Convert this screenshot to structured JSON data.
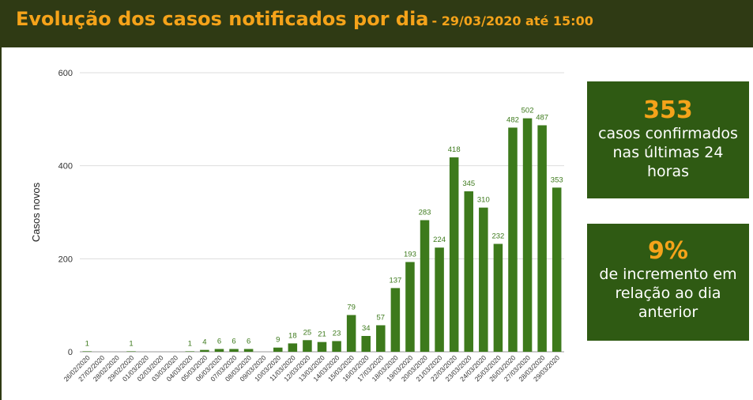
{
  "header": {
    "title": "Evolução dos casos notificados por dia",
    "subtitle": "- 29/03/2020 até 15:00"
  },
  "cards": {
    "confirmed": {
      "value": "353",
      "text": "casos confirmados nas últimas 24 horas"
    },
    "increase": {
      "value": "9%",
      "text": "de incremento em relação ao dia anterior"
    }
  },
  "colors": {
    "bar": "#3d7a1c",
    "label": "#3d7a1c",
    "header_bg": "#2f3a14",
    "accent": "#f5a31a",
    "card_bg": "#2f5a13"
  },
  "chart_data": {
    "type": "bar",
    "ylabel": "Casos novos",
    "ylim": [
      0,
      600
    ],
    "yticks": [
      0,
      200,
      400,
      600
    ],
    "grid": true,
    "categories": [
      "26/02/2020",
      "27/02/2020",
      "28/02/2020",
      "29/02/2020",
      "01/03/2020",
      "02/03/2020",
      "03/03/2020",
      "04/03/2020",
      "05/03/2020",
      "06/03/2020",
      "07/03/2020",
      "08/03/2020",
      "09/03/2020",
      "10/03/2020",
      "11/03/2020",
      "12/03/2020",
      "13/03/2020",
      "14/03/2020",
      "15/03/2020",
      "16/03/2020",
      "17/03/2020",
      "18/03/2020",
      "19/03/2020",
      "20/03/2020",
      "21/03/2020",
      "22/03/2020",
      "23/03/2020",
      "24/03/2020",
      "25/03/2020",
      "26/03/2020",
      "27/03/2020",
      "28/03/2020",
      "29/03/2020"
    ],
    "values": [
      1,
      0,
      0,
      1,
      0,
      0,
      0,
      1,
      4,
      6,
      6,
      6,
      0,
      9,
      18,
      25,
      21,
      23,
      79,
      34,
      57,
      137,
      193,
      283,
      224,
      418,
      345,
      310,
      232,
      482,
      502,
      487,
      353
    ],
    "data_labels": [
      "1",
      "",
      "",
      "1",
      "",
      "",
      "",
      "1",
      "4",
      "6",
      "6",
      "6",
      "",
      "9",
      "18",
      "25",
      "21",
      "23",
      "79",
      "34",
      "57",
      "137",
      "193",
      "283",
      "224",
      "418",
      "345",
      "310",
      "232",
      "482",
      "502",
      "487",
      "353"
    ]
  }
}
